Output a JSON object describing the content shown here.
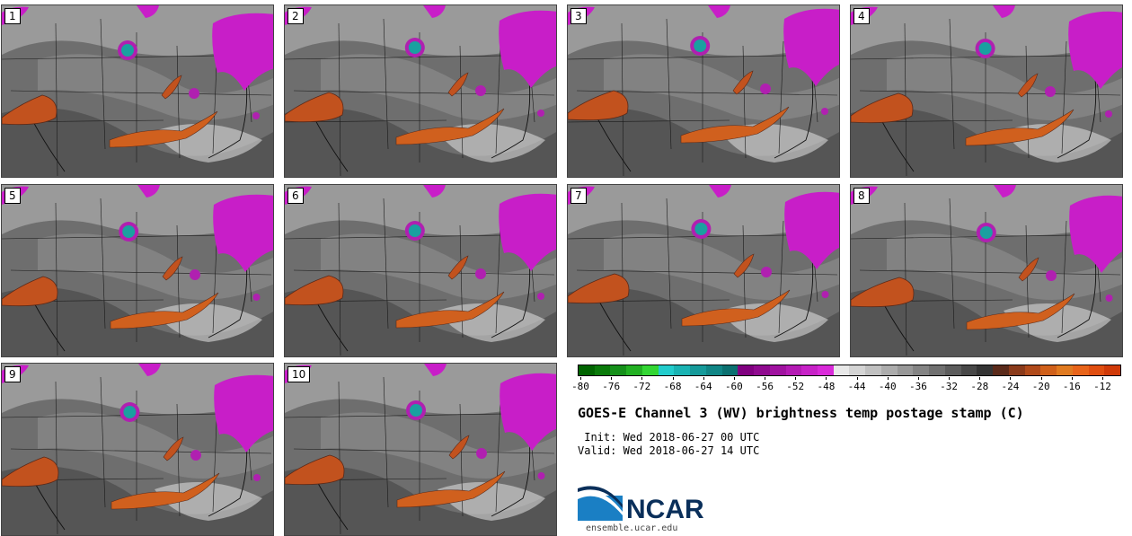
{
  "panels": [
    {
      "number": "1"
    },
    {
      "number": "2"
    },
    {
      "number": "3"
    },
    {
      "number": "4"
    },
    {
      "number": "5"
    },
    {
      "number": "6"
    },
    {
      "number": "7"
    },
    {
      "number": "8"
    },
    {
      "number": "9"
    },
    {
      "number": "10"
    }
  ],
  "colorbar": {
    "tick_labels": [
      "-80",
      "-76",
      "-72",
      "-68",
      "-64",
      "-60",
      "-56",
      "-52",
      "-48",
      "-44",
      "-40",
      "-36",
      "-32",
      "-28",
      "-24",
      "-20",
      "-16",
      "-12"
    ],
    "colors": [
      "#006400",
      "#0a7a0a",
      "#15901a",
      "#22b022",
      "#33d633",
      "#22cccc",
      "#1ab3b3",
      "#159a9a",
      "#108585",
      "#0b7070",
      "#800080",
      "#8f0a8f",
      "#a012a0",
      "#b41ab4",
      "#c722c7",
      "#d92ad9",
      "#e8e8e8",
      "#d4d4d4",
      "#c0c0c0",
      "#acacac",
      "#989898",
      "#848484",
      "#707070",
      "#5c5c5c",
      "#484848",
      "#343434",
      "#5a2a1a",
      "#8a3a1a",
      "#b04a1a",
      "#d0601a",
      "#e07a20",
      "#e8641a",
      "#e04e10",
      "#d03a08"
    ]
  },
  "title": "GOES-E Channel 3 (WV) brightness temp postage stamp (C)",
  "init": " Init: Wed 2018-06-27 00 UTC",
  "valid": "Valid: Wed 2018-06-27 14 UTC",
  "logo": {
    "text": "NCAR",
    "url": "ensemble.ucar.edu"
  }
}
